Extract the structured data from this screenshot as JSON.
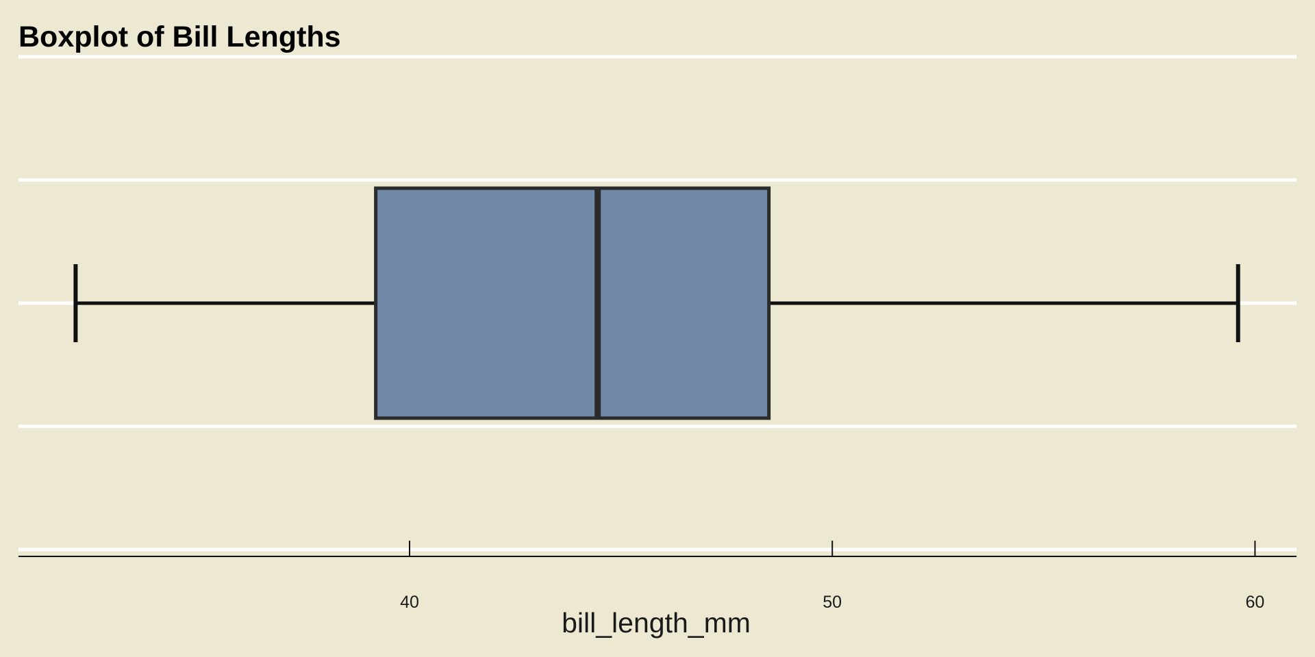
{
  "chart_data": {
    "type": "boxplot",
    "title": "Boxplot of Bill Lengths",
    "xlabel": "bill_length_mm",
    "ylabel": "",
    "orientation": "horizontal",
    "xlim": [
      30.75,
      61
    ],
    "x_ticks": [
      40,
      50,
      60
    ],
    "x_tick_labels": [
      "40",
      "50",
      "60"
    ],
    "grid": true,
    "legend": "none",
    "box": {
      "min": 32.1,
      "q1": 39.2,
      "median": 44.45,
      "q3": 48.5,
      "max": 59.6
    },
    "colors": {
      "background": "#ECE8D2",
      "box_fill": "#6E88A6",
      "box_outline": "#2b2b2b",
      "whisker": "#111111",
      "grid": "#FFFFFF",
      "axis": "#111111"
    }
  }
}
